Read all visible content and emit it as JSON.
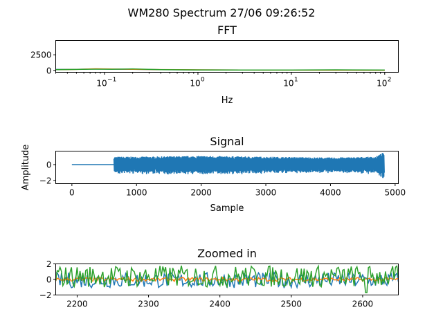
{
  "figure": {
    "suptitle": "WM280 Spectrum 27/06 09:26:52"
  },
  "colors": {
    "c0": "#1f77b4",
    "c1": "#ff7f0e",
    "c2": "#2ca02c"
  },
  "chart_data": [
    {
      "type": "line",
      "title": "FFT",
      "xlabel": "Hz",
      "ylabel": "",
      "xscale": "log",
      "xlim": [
        0.03,
        140
      ],
      "ylim": [
        -300,
        4800
      ],
      "xticks": [
        {
          "base": "10",
          "exp": "−1",
          "value": 0.1
        },
        {
          "base": "10",
          "exp": "0",
          "value": 1
        },
        {
          "base": "10",
          "exp": "1",
          "value": 10
        },
        {
          "base": "10",
          "exp": "2",
          "value": 100
        }
      ],
      "yticks": [
        {
          "label": "0",
          "value": 0
        },
        {
          "label": "2500",
          "value": 2500
        }
      ],
      "grid": false,
      "series": [
        {
          "color_key": "c0",
          "x": [
            0.03,
            0.05,
            0.08,
            0.12,
            0.2,
            0.4,
            1,
            3,
            10,
            30,
            100
          ],
          "y": [
            150,
            180,
            230,
            200,
            170,
            120,
            80,
            60,
            50,
            40,
            30
          ]
        },
        {
          "color_key": "c1",
          "x": [
            0.03,
            0.05,
            0.08,
            0.12,
            0.2,
            0.4,
            1,
            3,
            10,
            30,
            100
          ],
          "y": [
            120,
            160,
            260,
            230,
            180,
            130,
            90,
            60,
            45,
            35,
            25
          ]
        },
        {
          "color_key": "c2",
          "x": [
            0.03,
            0.05,
            0.08,
            0.12,
            0.2,
            0.4,
            1,
            3,
            10,
            30,
            100
          ],
          "y": [
            110,
            150,
            200,
            190,
            240,
            120,
            80,
            70,
            55,
            90,
            60
          ]
        }
      ]
    },
    {
      "type": "line",
      "title": "Signal",
      "xlabel": "Sample",
      "ylabel": "Amplitude",
      "xlim": [
        -250,
        5050
      ],
      "ylim": [
        -2.4,
        1.7
      ],
      "xticks": [
        {
          "label": "0",
          "value": 0
        },
        {
          "label": "1000",
          "value": 1000
        },
        {
          "label": "2000",
          "value": 2000
        },
        {
          "label": "3000",
          "value": 3000
        },
        {
          "label": "4000",
          "value": 4000
        },
        {
          "label": "5000",
          "value": 5000
        }
      ],
      "yticks": [
        {
          "label": "0",
          "value": 0
        },
        {
          "label": "−2",
          "value": -2
        }
      ],
      "grid": false,
      "series": [
        {
          "color_key": "c0",
          "flat_until": 650,
          "end": 4830,
          "envelope": [
            [
              650,
              1.0
            ],
            [
              1000,
              1.0
            ],
            [
              2000,
              1.1
            ],
            [
              3000,
              1.0
            ],
            [
              4000,
              0.9
            ],
            [
              4700,
              1.0
            ],
            [
              4830,
              1.6
            ]
          ]
        }
      ]
    },
    {
      "type": "line",
      "title": "Zoomed in",
      "xlabel": "",
      "ylabel": "",
      "xlim": [
        2170,
        2650
      ],
      "ylim": [
        -2,
        2
      ],
      "xticks": [
        {
          "label": "2200",
          "value": 2200
        },
        {
          "label": "2300",
          "value": 2300
        },
        {
          "label": "2400",
          "value": 2400
        },
        {
          "label": "2500",
          "value": 2500
        },
        {
          "label": "2600",
          "value": 2600
        }
      ],
      "yticks": [
        {
          "label": "2",
          "value": 2
        },
        {
          "label": "0",
          "value": 0
        },
        {
          "label": "−2",
          "value": -2
        }
      ],
      "grid": false,
      "series": [
        {
          "color_key": "c0",
          "center": -0.1,
          "amp": 1.0
        },
        {
          "color_key": "c1",
          "center": 0.0,
          "amp": 0.25
        },
        {
          "color_key": "c2",
          "center": 0.4,
          "amp": 1.4,
          "dip_at": 2605,
          "dip_to": -1.7
        }
      ]
    }
  ]
}
